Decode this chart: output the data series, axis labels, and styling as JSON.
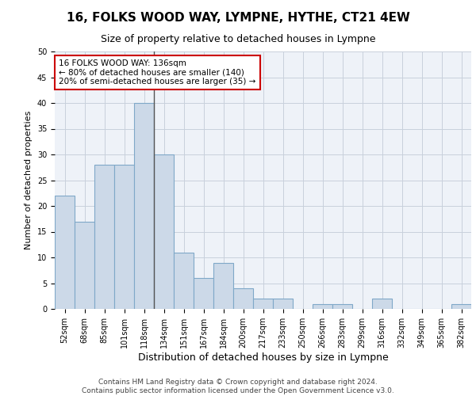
{
  "title": "16, FOLKS WOOD WAY, LYMPNE, HYTHE, CT21 4EW",
  "subtitle": "Size of property relative to detached houses in Lympne",
  "xlabel": "Distribution of detached houses by size in Lympne",
  "ylabel": "Number of detached properties",
  "categories": [
    "52sqm",
    "68sqm",
    "85sqm",
    "101sqm",
    "118sqm",
    "134sqm",
    "151sqm",
    "167sqm",
    "184sqm",
    "200sqm",
    "217sqm",
    "233sqm",
    "250sqm",
    "266sqm",
    "283sqm",
    "299sqm",
    "316sqm",
    "332sqm",
    "349sqm",
    "365sqm",
    "382sqm"
  ],
  "values": [
    22,
    17,
    28,
    28,
    40,
    30,
    11,
    6,
    9,
    4,
    2,
    2,
    0,
    1,
    1,
    0,
    2,
    0,
    0,
    0,
    1
  ],
  "bar_color": "#ccd9e8",
  "bar_edge_color": "#7fa8c8",
  "bar_linewidth": 0.8,
  "vline_x": 4.5,
  "vline_color": "#555555",
  "vline_linewidth": 1.0,
  "annotation_line1": "16 FOLKS WOOD WAY: 136sqm",
  "annotation_line2": "← 80% of detached houses are smaller (140)",
  "annotation_line3": "20% of semi-detached houses are larger (35) →",
  "annotation_box_color": "#cc0000",
  "annotation_text_size": 7.5,
  "grid_color": "#c8d0dc",
  "background_color": "#eef2f8",
  "ylim": [
    0,
    50
  ],
  "yticks": [
    0,
    5,
    10,
    15,
    20,
    25,
    30,
    35,
    40,
    45,
    50
  ],
  "footer_line1": "Contains HM Land Registry data © Crown copyright and database right 2024.",
  "footer_line2": "Contains public sector information licensed under the Open Government Licence v3.0.",
  "title_fontsize": 11,
  "subtitle_fontsize": 9,
  "xlabel_fontsize": 9,
  "ylabel_fontsize": 8,
  "tick_fontsize": 7,
  "footer_fontsize": 6.5
}
